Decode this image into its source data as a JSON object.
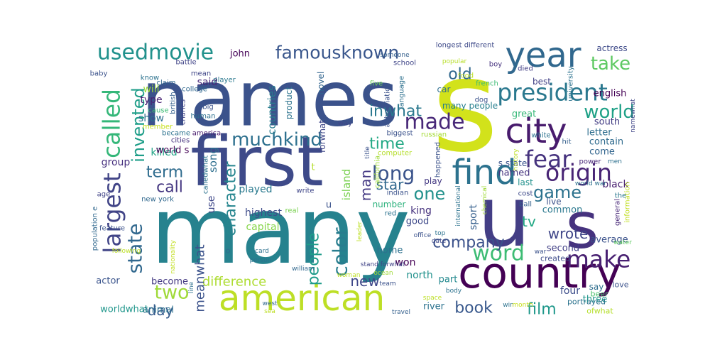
{
  "words": [
    {
      "t": "many",
      "c": "#26828e"
    },
    {
      "t": "s",
      "c": "#d2e21b"
    },
    {
      "t": "names",
      "c": "#3b528b"
    },
    {
      "t": "first",
      "c": "#3e4a89"
    },
    {
      "t": "u",
      "c": "#433e85"
    },
    {
      "t": "s",
      "c": "#46327e"
    },
    {
      "t": "country",
      "c": "#440154"
    },
    {
      "t": "year",
      "c": "#31688e"
    },
    {
      "t": "city",
      "c": "#481b6d"
    },
    {
      "t": "find",
      "c": "#2c728e"
    },
    {
      "t": "american",
      "c": "#bddf26"
    },
    {
      "t": "president",
      "c": "#2a788e"
    },
    {
      "t": "usedmovie",
      "c": "#21918c"
    },
    {
      "t": "famousknown",
      "c": "#39568c"
    },
    {
      "t": "called",
      "c": "#35b779"
    },
    {
      "t": "largest",
      "c": "#414487"
    },
    {
      "t": "muchkind",
      "c": "#2d708e"
    },
    {
      "t": "made",
      "c": "#482878"
    },
    {
      "t": "fear",
      "c": "#46337e"
    },
    {
      "t": "origin",
      "c": "#482475"
    },
    {
      "t": "word",
      "c": "#3dbc74"
    },
    {
      "t": "make",
      "c": "#482071"
    },
    {
      "t": "take",
      "c": "#5ec962"
    },
    {
      "t": "world",
      "c": "#1fa187"
    },
    {
      "t": "long",
      "c": "#3a538b"
    },
    {
      "t": "state",
      "c": "#31688e"
    },
    {
      "t": "one",
      "c": "#21918c"
    },
    {
      "t": "game",
      "c": "#2c728e"
    },
    {
      "t": "color",
      "c": "#287d8e"
    },
    {
      "t": "company",
      "c": "#3b528b"
    },
    {
      "t": "book",
      "c": "#38588c"
    },
    {
      "t": "film",
      "c": "#1f988b"
    },
    {
      "t": "two",
      "c": "#a0da39"
    },
    {
      "t": "invented",
      "c": "#1f9e89"
    },
    {
      "t": "people",
      "c": "#1e9b8a"
    },
    {
      "t": "inwhat",
      "c": "#2a788e"
    },
    {
      "t": "time",
      "c": "#22a884"
    },
    {
      "t": "star",
      "c": "#31688e"
    },
    {
      "t": "character",
      "c": "#25858e"
    },
    {
      "t": "wrote",
      "c": "#404688"
    },
    {
      "t": "old",
      "c": "#31688e"
    },
    {
      "t": "term",
      "c": "#2f6c8e"
    },
    {
      "t": "call",
      "c": "#453781"
    },
    {
      "t": "new",
      "c": "#3f4889"
    },
    {
      "t": "day",
      "c": "#365c8d"
    },
    {
      "t": "man",
      "c": "#443983"
    },
    {
      "t": "tv",
      "c": "#22a884"
    },
    {
      "t": "difference",
      "c": "#addc30"
    },
    {
      "t": "meanwhat",
      "c": "#3b528b"
    },
    {
      "t": "island",
      "c": "#7ad151"
    },
    {
      "t": "countries",
      "c": "#287c8e"
    },
    {
      "t": "song",
      "c": "#2e6f8e"
    },
    {
      "t": "played",
      "c": "#29798e"
    },
    {
      "t": "highest",
      "c": "#3e4c8a"
    },
    {
      "t": "killed",
      "c": "#20a386"
    },
    {
      "t": "group",
      "c": "#46307e"
    },
    {
      "t": "use",
      "c": "#3f4889"
    },
    {
      "t": "capital",
      "c": "#86d549"
    },
    {
      "t": "john",
      "c": "#440256"
    },
    {
      "t": "said",
      "c": "#482878"
    },
    {
      "t": "type",
      "c": "#482173"
    },
    {
      "t": "show",
      "c": "#2d708e"
    },
    {
      "t": "will",
      "c": "#9bd93c"
    },
    {
      "t": "world s",
      "c": "#440154"
    },
    {
      "t": "worldwhat",
      "c": "#1f968b"
    },
    {
      "t": "animal",
      "c": "#2c738e"
    },
    {
      "t": "actor",
      "c": "#3a548c"
    },
    {
      "t": "become",
      "c": "#443a83"
    },
    {
      "t": "home",
      "c": "#2d718e"
    },
    {
      "t": "won",
      "c": "#440154"
    },
    {
      "t": "north",
      "c": "#21918c"
    },
    {
      "t": "river",
      "c": "#2c728e"
    },
    {
      "t": "three",
      "c": "#1f958b"
    },
    {
      "t": "sport",
      "c": "#355f8d"
    },
    {
      "t": "king",
      "c": "#46327e"
    },
    {
      "t": "good",
      "c": "#3e4989"
    },
    {
      "t": "part",
      "c": "#23898e"
    },
    {
      "t": "four",
      "c": "#3d4d8a"
    },
    {
      "t": "second",
      "c": "#424086"
    },
    {
      "t": "average",
      "c": "#3b528b"
    },
    {
      "t": "common",
      "c": "#2a788e"
    },
    {
      "t": "live",
      "c": "#3b528b"
    },
    {
      "t": "black",
      "c": "#481f70"
    },
    {
      "t": "letter",
      "c": "#2e6e8e"
    },
    {
      "t": "south",
      "c": "#433d84"
    },
    {
      "t": "come",
      "c": "#32658e"
    },
    {
      "t": "contain",
      "c": "#2f6b8e"
    },
    {
      "t": "great",
      "c": "#37b878"
    },
    {
      "t": "named",
      "c": "#46337f"
    },
    {
      "t": "s state",
      "c": "#3a548c"
    },
    {
      "t": "many people",
      "c": "#277f8e"
    },
    {
      "t": "english",
      "c": "#440154"
    },
    {
      "t": "best",
      "c": "#424186"
    },
    {
      "t": "actress",
      "c": "#3e4a89"
    },
    {
      "t": "car",
      "c": "#2e6d8e"
    },
    {
      "t": "novel",
      "c": "#32658e"
    },
    {
      "t": "forwhat",
      "c": "#3f4788"
    },
    {
      "t": "product",
      "c": "#2c738e"
    },
    {
      "t": "number",
      "c": "#2db27d"
    },
    {
      "t": "play",
      "c": "#443983"
    },
    {
      "t": "last",
      "c": "#21918c"
    },
    {
      "t": "say",
      "c": "#2e6e8e"
    },
    {
      "t": "love",
      "c": "#3b528b"
    },
    {
      "t": "created",
      "c": "#3e4c8a"
    },
    {
      "t": "beer",
      "c": "#4ac16d"
    },
    {
      "t": "portrayed",
      "c": "#2c738e"
    },
    {
      "t": "ofwhat",
      "c": "#b5de2b"
    },
    {
      "t": "general",
      "c": "#482878"
    },
    {
      "t": "information",
      "c": "#c2df23"
    },
    {
      "t": "the",
      "c": "#2a788e"
    },
    {
      "t": "dog",
      "c": "#3b528b"
    },
    {
      "t": "died",
      "c": "#433e85"
    },
    {
      "t": "food",
      "c": "#bddf26"
    },
    {
      "t": "french",
      "c": "#3dbc74"
    },
    {
      "t": "boy",
      "c": "#46327e"
    },
    {
      "t": "university",
      "c": "#2c728e"
    },
    {
      "t": "school",
      "c": "#404688"
    },
    {
      "t": "longest different",
      "c": "#3e4a89"
    },
    {
      "t": "someone",
      "c": "#35608d"
    },
    {
      "t": "popular",
      "c": "#b8de29"
    },
    {
      "t": "battle",
      "c": "#414487"
    },
    {
      "t": "baby",
      "c": "#3b528b"
    },
    {
      "t": "know",
      "c": "#2c728e"
    },
    {
      "t": "claim",
      "c": "#31688e"
    },
    {
      "t": "mean",
      "c": "#404688"
    },
    {
      "t": "player",
      "c": "#2a788e"
    },
    {
      "t": "college",
      "c": "#31688e"
    },
    {
      "t": "five",
      "c": "#6ccd5a"
    },
    {
      "t": "language",
      "c": "#2d708e"
    },
    {
      "t": "abbreviation",
      "c": "#3b528b"
    },
    {
      "t": "british",
      "c": "#35608d"
    },
    {
      "t": "big",
      "c": "#3b528b"
    },
    {
      "t": "human",
      "c": "#2d708e"
    },
    {
      "t": "charles",
      "c": "#414487"
    },
    {
      "t": "cause",
      "c": "#3dbc74"
    },
    {
      "t": "member",
      "c": "#c8e020"
    },
    {
      "t": "became",
      "c": "#2c728e"
    },
    {
      "t": "america",
      "c": "#481b6d"
    },
    {
      "t": "cities",
      "c": "#46327e"
    },
    {
      "t": "way",
      "c": "#404688"
    },
    {
      "t": "biggest",
      "c": "#3b528b"
    },
    {
      "t": "russian",
      "c": "#a5db36"
    },
    {
      "t": "namewhat",
      "c": "#404688"
    },
    {
      "t": "white",
      "c": "#2c728e"
    },
    {
      "t": "hit",
      "c": "#35608d"
    },
    {
      "t": "power",
      "c": "#482878"
    },
    {
      "t": "men",
      "c": "#2d708e"
    },
    {
      "t": "computer",
      "c": "#b5de2b"
    },
    {
      "t": "happened",
      "c": "#3b528b"
    },
    {
      "t": "history",
      "c": "#bddf26"
    },
    {
      "t": "title",
      "c": "#3b528b"
    },
    {
      "t": "california",
      "c": "#a0da39"
    },
    {
      "t": "calledwhat",
      "c": "#2c728e"
    },
    {
      "t": "age",
      "c": "#414487"
    },
    {
      "t": "new york",
      "c": "#31688e"
    },
    {
      "t": "write",
      "c": "#404688"
    },
    {
      "t": "indian",
      "c": "#3b528b"
    },
    {
      "t": "red",
      "c": "#2c728e"
    },
    {
      "t": "real",
      "c": "#7ad151"
    },
    {
      "t": "international",
      "c": "#2c728e"
    },
    {
      "t": "cost",
      "c": "#3e4a89"
    },
    {
      "t": "ball",
      "c": "#35608d"
    },
    {
      "t": "chemical",
      "c": "#a0da39"
    },
    {
      "t": "feature",
      "c": "#3b528b"
    },
    {
      "t": "population e",
      "c": "#31688e"
    },
    {
      "t": "world war",
      "c": "#2d708e"
    },
    {
      "t": "leader",
      "c": "#bddf26"
    },
    {
      "t": "office",
      "c": "#3b528b"
    },
    {
      "t": "top",
      "c": "#2c728e"
    },
    {
      "t": "date",
      "c": "#3e4a89"
    },
    {
      "t": "water",
      "c": "#5ec962"
    },
    {
      "t": "following",
      "c": "#bddf26"
    },
    {
      "t": "nationality",
      "c": "#c2df23"
    },
    {
      "t": "person",
      "c": "#2c728e"
    },
    {
      "t": "card",
      "c": "#2d708e"
    },
    {
      "t": "stand forwhat",
      "c": "#414487"
    },
    {
      "t": "war",
      "c": "#3b528b"
    },
    {
      "t": "william",
      "c": "#31688e"
    },
    {
      "t": "ocean",
      "c": "#a0da39"
    },
    {
      "t": "woman",
      "c": "#bddf26"
    },
    {
      "t": "team",
      "c": "#3b528b"
    },
    {
      "t": "body",
      "c": "#2c728e"
    },
    {
      "t": "space",
      "c": "#bddf26"
    },
    {
      "t": "travel",
      "c": "#35608d"
    },
    {
      "t": "win",
      "c": "#2c728e"
    },
    {
      "t": "month",
      "c": "#c8e020"
    },
    {
      "t": "west",
      "c": "#31688e"
    },
    {
      "t": "sea",
      "c": "#bddf26"
    },
    {
      "t": "line",
      "c": "#2d708e"
    },
    {
      "t": "t",
      "c": "#b5de2b"
    },
    {
      "t": "u",
      "c": "#3b528b"
    },
    {
      "t": "o",
      "c": "#31688e"
    }
  ]
}
